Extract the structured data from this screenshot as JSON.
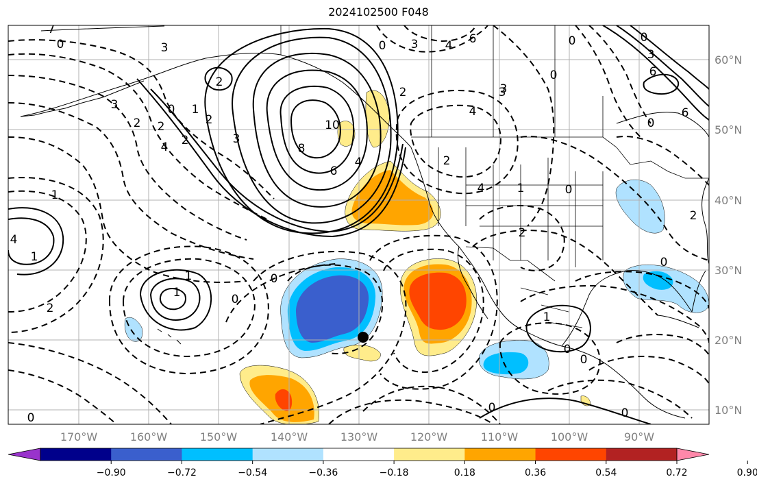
{
  "title": "2024102500 F048",
  "lat_labels": [
    "60°N",
    "50°N",
    "40°N",
    "30°N",
    "20°N",
    "10°N"
  ],
  "lon_labels": [
    "170°W",
    "160°W",
    "150°W",
    "140°W",
    "130°W",
    "120°W",
    "110°W",
    "100°W",
    "90°W"
  ],
  "colorbar": {
    "colors": [
      "#9933cc",
      "#00008b",
      "#3a5fcd",
      "#00bfff",
      "#b0e2ff",
      "#ffffff",
      "#ffec8b",
      "#ffa500",
      "#ff4500",
      "#b22222",
      "#ff88aa"
    ],
    "tick_labels": [
      "−0.90",
      "−0.72",
      "−0.54",
      "−0.36",
      "−0.18",
      "0.18",
      "0.36",
      "0.54",
      "0.72",
      "0.90"
    ]
  },
  "contour_labels": [
    "0",
    "7",
    "6",
    "4",
    "3",
    "3",
    "2",
    "2",
    "0",
    "1",
    "2",
    "3",
    "2",
    "4",
    "10",
    "8",
    "6",
    "4",
    "0",
    "1",
    "1",
    "2",
    "3",
    "0",
    "1",
    "2",
    "4",
    "4",
    "3",
    "0",
    "6",
    "1",
    "0",
    "4",
    "3",
    "2",
    "0",
    "3",
    "2",
    "1",
    "0",
    "2",
    "0",
    "0",
    "1",
    "2",
    "0",
    "0",
    "0",
    "0",
    "0",
    "6",
    "0"
  ]
}
